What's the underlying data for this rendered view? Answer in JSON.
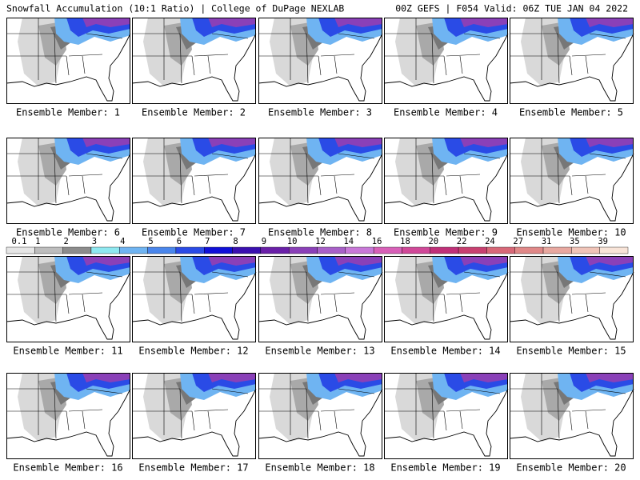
{
  "header": {
    "left": "Snowfall Accumulation (10:1 Ratio) | College of DuPage NEXLAB",
    "right": "00Z GEFS | F054 Valid: 06Z TUE JAN 04 2022"
  },
  "panels": [
    {
      "label": "Ensemble Member: 1"
    },
    {
      "label": "Ensemble Member: 2"
    },
    {
      "label": "Ensemble Member: 3"
    },
    {
      "label": "Ensemble Member: 4"
    },
    {
      "label": "Ensemble Member: 5"
    },
    {
      "label": "Ensemble Member: 6"
    },
    {
      "label": "Ensemble Member: 7"
    },
    {
      "label": "Ensemble Member: 8"
    },
    {
      "label": "Ensemble Member: 9"
    },
    {
      "label": "Ensemble Member: 10"
    },
    {
      "label": "Ensemble Member: 11"
    },
    {
      "label": "Ensemble Member: 12"
    },
    {
      "label": "Ensemble Member: 13"
    },
    {
      "label": "Ensemble Member: 14"
    },
    {
      "label": "Ensemble Member: 15"
    },
    {
      "label": "Ensemble Member: 16"
    },
    {
      "label": "Ensemble Member: 17"
    },
    {
      "label": "Ensemble Member: 18"
    },
    {
      "label": "Ensemble Member: 19"
    },
    {
      "label": "Ensemble Member: 20"
    }
  ],
  "legend": {
    "items": [
      {
        "label": "0.1",
        "color": "#e6e6e6"
      },
      {
        "label": "1",
        "color": "#bdbdbd"
      },
      {
        "label": "2",
        "color": "#8c8c8c"
      },
      {
        "label": "3",
        "color": "#8ee8f0"
      },
      {
        "label": "4",
        "color": "#6fb4f2"
      },
      {
        "label": "5",
        "color": "#4a86ec"
      },
      {
        "label": "6",
        "color": "#2a4be6"
      },
      {
        "label": "7",
        "color": "#1010d8"
      },
      {
        "label": "8",
        "color": "#3a10b0"
      },
      {
        "label": "9",
        "color": "#6a20a8"
      },
      {
        "label": "10",
        "color": "#8a40b8"
      },
      {
        "label": "12",
        "color": "#a860c8"
      },
      {
        "label": "14",
        "color": "#c878d8"
      },
      {
        "label": "16",
        "color": "#d860b8"
      },
      {
        "label": "18",
        "color": "#d04898"
      },
      {
        "label": "20",
        "color": "#c03078"
      },
      {
        "label": "22",
        "color": "#c84070"
      },
      {
        "label": "24",
        "color": "#d86878"
      },
      {
        "label": "27",
        "color": "#e08888"
      },
      {
        "label": "31",
        "color": "#e8a8a0"
      },
      {
        "label": "35",
        "color": "#f0c4b8"
      },
      {
        "label": "39",
        "color": "#f8e4d8"
      }
    ]
  }
}
